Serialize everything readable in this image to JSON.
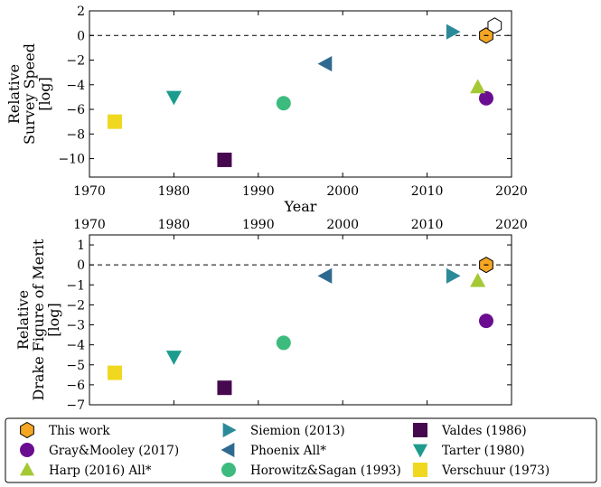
{
  "chart_data": [
    {
      "type": "scatter",
      "title": "",
      "xlabel": "Year",
      "ylabel": [
        "Relative",
        "Survey Speed",
        "[log]"
      ],
      "xlim": [
        1970,
        2020
      ],
      "ylim": [
        -11.5,
        2
      ],
      "x_ticks": [
        1970,
        1980,
        1990,
        2000,
        2010,
        2020
      ],
      "y_ticks": [
        2,
        0,
        -2,
        -4,
        -6,
        -8,
        -10
      ],
      "x_tick_labels": [
        "1970",
        "1980",
        "1990",
        "2000",
        "2010",
        "2020"
      ],
      "y_tick_labels": [
        "2",
        "0",
        "−2",
        "−4",
        "−6",
        "−8",
        "−10"
      ],
      "reference_line": 0,
      "points": [
        {
          "series": "This work",
          "x": 2017,
          "y": 0
        },
        {
          "series": "Gray&Mooley (2017)",
          "x": 2017,
          "y": -5.1
        },
        {
          "series": "Harp (2016) All*",
          "x": 2016,
          "y": -4.2
        },
        {
          "series": "Siemion (2013)",
          "x": 2013,
          "y": 0.3
        },
        {
          "series": "Phoenix All*",
          "x": 1998,
          "y": -2.3
        },
        {
          "series": "Horowitz&Sagan (1993)",
          "x": 1993,
          "y": -5.5
        },
        {
          "series": "Valdes (1986)",
          "x": 1986,
          "y": -10.1
        },
        {
          "series": "Tarter (1980)",
          "x": 1980,
          "y": -5.0
        },
        {
          "series": "Verschuur (1973)",
          "x": 1973,
          "y": -7.0
        },
        {
          "series": "open-hexagon",
          "x": 2018,
          "y": 0.8
        }
      ]
    },
    {
      "type": "scatter",
      "title": "",
      "xlabel": "",
      "ylabel": [
        "Relative",
        "Drake Figure of Merit",
        "[log]"
      ],
      "xlim": [
        1970,
        2020
      ],
      "ylim": [
        -7,
        1.5
      ],
      "x_ticks": [
        1970,
        1980,
        1990,
        2000,
        2010,
        2020
      ],
      "y_ticks": [
        1,
        0,
        -1,
        -2,
        -3,
        -4,
        -5,
        -6,
        -7
      ],
      "x_tick_labels": [
        "1970",
        "1980",
        "1990",
        "2000",
        "2010",
        "2020"
      ],
      "y_tick_labels": [
        "1",
        "0",
        "−1",
        "−2",
        "−3",
        "−4",
        "−5",
        "−6",
        "−7"
      ],
      "reference_line": 0,
      "points": [
        {
          "series": "This work",
          "x": 2017,
          "y": 0
        },
        {
          "series": "Gray&Mooley (2017)",
          "x": 2017,
          "y": -2.8
        },
        {
          "series": "Harp (2016) All*",
          "x": 2016,
          "y": -0.8
        },
        {
          "series": "Siemion (2013)",
          "x": 2013,
          "y": -0.55
        },
        {
          "series": "Phoenix All*",
          "x": 1998,
          "y": -0.55
        },
        {
          "series": "Horowitz&Sagan (1993)",
          "x": 1993,
          "y": -3.9
        },
        {
          "series": "Valdes (1986)",
          "x": 1986,
          "y": -6.15
        },
        {
          "series": "Tarter (1980)",
          "x": 1980,
          "y": -4.6
        },
        {
          "series": "Verschuur (1973)",
          "x": 1973,
          "y": -5.4
        }
      ]
    }
  ],
  "legend": {
    "placement": "bottom",
    "entries": [
      {
        "name": "This work",
        "marker": "hexagon",
        "color": "#f5a623"
      },
      {
        "name": "Gray&Mooley (2017)",
        "marker": "circle",
        "color": "#6a0d91"
      },
      {
        "name": "Harp (2016) All*",
        "marker": "triangle-up",
        "color": "#a4c934"
      },
      {
        "name": "Siemion (2013)",
        "marker": "triangle-right",
        "color": "#2b8a9a"
      },
      {
        "name": "Phoenix All*",
        "marker": "triangle-left",
        "color": "#2e6a90"
      },
      {
        "name": "Horowitz&Sagan (1993)",
        "marker": "circle",
        "color": "#3dbb7e"
      },
      {
        "name": "Valdes (1986)",
        "marker": "square",
        "color": "#46094f"
      },
      {
        "name": "Tarter (1980)",
        "marker": "triangle-down",
        "color": "#1d9b8d"
      },
      {
        "name": "Verschuur (1973)",
        "marker": "square",
        "color": "#f0d820"
      }
    ]
  },
  "open_marker_color": "#ffffff"
}
